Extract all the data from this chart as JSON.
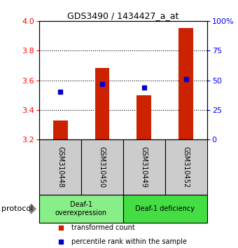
{
  "title": "GDS3490 / 1434427_a_at",
  "samples": [
    "GSM310448",
    "GSM310450",
    "GSM310449",
    "GSM310452"
  ],
  "bar_values": [
    3.33,
    3.685,
    3.5,
    3.955
  ],
  "bar_bottom": 3.2,
  "percentile_values": [
    40,
    47,
    44,
    51
  ],
  "ylim_left": [
    3.2,
    4.0
  ],
  "ylim_right": [
    0,
    100
  ],
  "yticks_left": [
    3.2,
    3.4,
    3.6,
    3.8,
    4.0
  ],
  "yticks_right": [
    0,
    25,
    50,
    75,
    100
  ],
  "bar_color": "#cc2200",
  "percentile_color": "#0000cc",
  "group1_label": "Deaf-1\noverexpression",
  "group2_label": "Deaf-1 deficiency",
  "group1_color": "#88ee88",
  "group2_color": "#44dd44",
  "sample_bg_color": "#cccccc",
  "protocol_label": "protocol",
  "legend_bar_label": "transformed count",
  "legend_pct_label": "percentile rank within the sample",
  "bar_width": 0.35
}
